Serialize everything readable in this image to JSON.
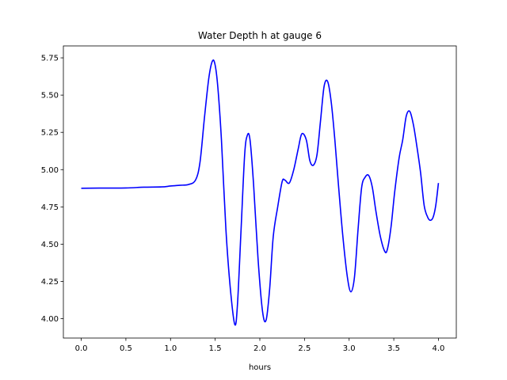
{
  "chart_data": {
    "type": "line",
    "title": "Water Depth h at gauge 6",
    "xlabel": "hours",
    "ylabel": "",
    "xlim": [
      -0.2,
      4.2
    ],
    "ylim": [
      3.87,
      5.83
    ],
    "xticks": [
      0.0,
      0.5,
      1.0,
      1.5,
      2.0,
      2.5,
      3.0,
      3.5,
      4.0
    ],
    "xtick_labels": [
      "0.0",
      "0.5",
      "1.0",
      "1.5",
      "2.0",
      "2.5",
      "3.0",
      "3.5",
      "4.0"
    ],
    "yticks": [
      4.0,
      4.25,
      4.5,
      4.75,
      5.0,
      5.25,
      5.5,
      5.75
    ],
    "ytick_labels": [
      "4.00",
      "4.25",
      "4.50",
      "4.75",
      "5.00",
      "5.25",
      "5.50",
      "5.75"
    ],
    "grid": false,
    "series": [
      {
        "color": "#0000ff",
        "x": [
          0.0,
          0.2,
          0.5,
          0.7,
          0.9,
          1.0,
          1.1,
          1.2,
          1.28,
          1.33,
          1.38,
          1.43,
          1.47,
          1.5,
          1.53,
          1.57,
          1.62,
          1.67,
          1.72,
          1.75,
          1.79,
          1.83,
          1.86,
          1.89,
          1.93,
          1.98,
          2.03,
          2.07,
          2.11,
          2.15,
          2.2,
          2.25,
          2.28,
          2.33,
          2.38,
          2.43,
          2.47,
          2.52,
          2.56,
          2.6,
          2.64,
          2.68,
          2.72,
          2.76,
          2.8,
          2.84,
          2.88,
          2.93,
          2.98,
          3.02,
          3.06,
          3.1,
          3.14,
          3.18,
          3.22,
          3.26,
          3.3,
          3.35,
          3.4,
          3.43,
          3.47,
          3.51,
          3.56,
          3.6,
          3.64,
          3.68,
          3.72,
          3.76,
          3.8,
          3.84,
          3.88,
          3.91,
          3.94,
          3.97,
          4.0
        ],
        "y": [
          4.875,
          4.876,
          4.877,
          4.882,
          4.884,
          4.89,
          4.895,
          4.9,
          4.93,
          5.05,
          5.35,
          5.62,
          5.73,
          5.7,
          5.55,
          5.2,
          4.6,
          4.2,
          3.96,
          4.1,
          4.6,
          5.1,
          5.23,
          5.2,
          4.9,
          4.4,
          4.05,
          3.99,
          4.2,
          4.55,
          4.75,
          4.92,
          4.93,
          4.91,
          5.0,
          5.14,
          5.24,
          5.2,
          5.06,
          5.03,
          5.1,
          5.33,
          5.56,
          5.59,
          5.45,
          5.2,
          4.9,
          4.55,
          4.28,
          4.18,
          4.28,
          4.6,
          4.88,
          4.95,
          4.96,
          4.88,
          4.72,
          4.55,
          4.45,
          4.47,
          4.62,
          4.85,
          5.08,
          5.2,
          5.36,
          5.39,
          5.3,
          5.15,
          4.98,
          4.76,
          4.68,
          4.66,
          4.68,
          4.76,
          4.91
        ]
      }
    ]
  }
}
